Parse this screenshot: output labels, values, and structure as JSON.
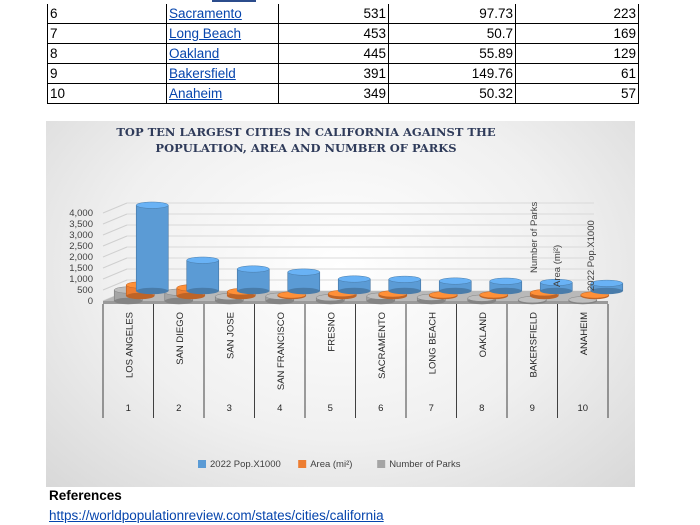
{
  "table": {
    "rows": [
      {
        "rank": "6",
        "city": "Sacramento",
        "pop": "531",
        "area": "97.73",
        "parks": "223"
      },
      {
        "rank": "7",
        "city": "Long Beach",
        "pop": "453",
        "area": "50.7",
        "parks": "169"
      },
      {
        "rank": "8",
        "city": "Oakland",
        "pop": "445",
        "area": "55.89",
        "parks": "129"
      },
      {
        "rank": "9",
        "city": "Bakersfield",
        "pop": "391",
        "area": "149.76",
        "parks": "61"
      },
      {
        "rank": "10",
        "city": "Anaheim",
        "pop": "349",
        "area": "50.32",
        "parks": "57"
      }
    ]
  },
  "chart_data": {
    "type": "bar",
    "title_line1": "TOP TEN LARGEST CITIES IN CALIFORNIA AGAINST THE",
    "title_line2": "POPULATION, AREA AND NUMBER OF PARKS",
    "categories": [
      "LOS ANGELES",
      "SAN DIEGO",
      "SAN JOSE",
      "SAN FRANCISCO",
      "FRESNO",
      "SACRAMENTO",
      "LONG BEACH",
      "OAKLAND",
      "BAKERSFIELD",
      "ANAHEIM"
    ],
    "ranks": [
      "1",
      "2",
      "3",
      "4",
      "5",
      "6",
      "7",
      "8",
      "9",
      "10"
    ],
    "series": [
      {
        "name": "2022 Pop.X1000",
        "color": "#5b9bd5",
        "values": [
          3900,
          1400,
          1000,
          860,
          545,
          531,
          453,
          445,
          391,
          349
        ]
      },
      {
        "name": "Area (mi²)",
        "color": "#ed7d31",
        "values": [
          500,
          370,
          200,
          50,
          115,
          98,
          51,
          56,
          150,
          50
        ]
      },
      {
        "name": "Number of Parks",
        "color": "#a5a5a5",
        "values": [
          500,
          400,
          200,
          220,
          150,
          223,
          169,
          129,
          61,
          57
        ]
      }
    ],
    "ytick_labels": [
      "0",
      "500",
      "1,000",
      "1,500",
      "2,000",
      "2,500",
      "3,000",
      "3,500",
      "4,000"
    ],
    "ylim": [
      0,
      4000
    ],
    "depth_labels": [
      "Number of Parks",
      "Area (mi²)",
      "2022 Pop.X1000"
    ],
    "legend_position": "bottom"
  },
  "references": {
    "heading": "References",
    "link": "https://worldpopulationreview.com/states/cities/california"
  }
}
